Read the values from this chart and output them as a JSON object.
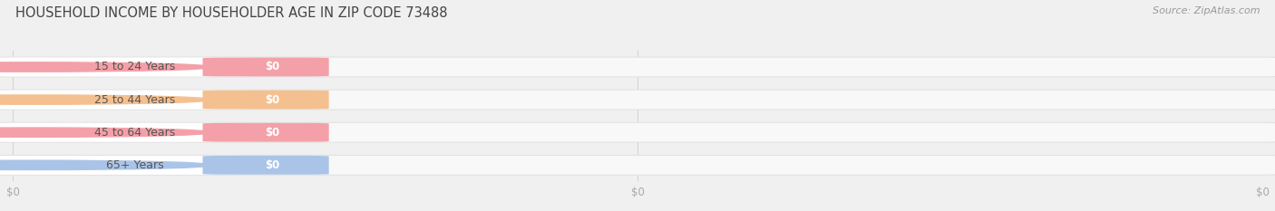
{
  "title": "HOUSEHOLD INCOME BY HOUSEHOLDER AGE IN ZIP CODE 73488",
  "source": "Source: ZipAtlas.com",
  "categories": [
    "15 to 24 Years",
    "25 to 44 Years",
    "45 to 64 Years",
    "65+ Years"
  ],
  "values": [
    0,
    0,
    0,
    0
  ],
  "bar_colors": [
    "#f4a0a8",
    "#f5c090",
    "#f4a0a8",
    "#aac4e8"
  ],
  "background_color": "#f0f0f0",
  "bar_bg_color": "#e2e2e2",
  "bar_bg_inner_color": "#f8f8f8",
  "white_pill_color": "#ffffff",
  "bar_text_color": "#ffffff",
  "label_text_color": "#555555",
  "title_color": "#444444",
  "tick_label_color": "#aaaaaa",
  "source_color": "#999999",
  "xlim_max": 1.0,
  "xticks": [
    0.0,
    0.5,
    1.0
  ],
  "xtick_labels": [
    "$0",
    "$0",
    "$0"
  ],
  "title_fontsize": 10.5,
  "label_fontsize": 9,
  "tick_fontsize": 8.5,
  "source_fontsize": 8
}
